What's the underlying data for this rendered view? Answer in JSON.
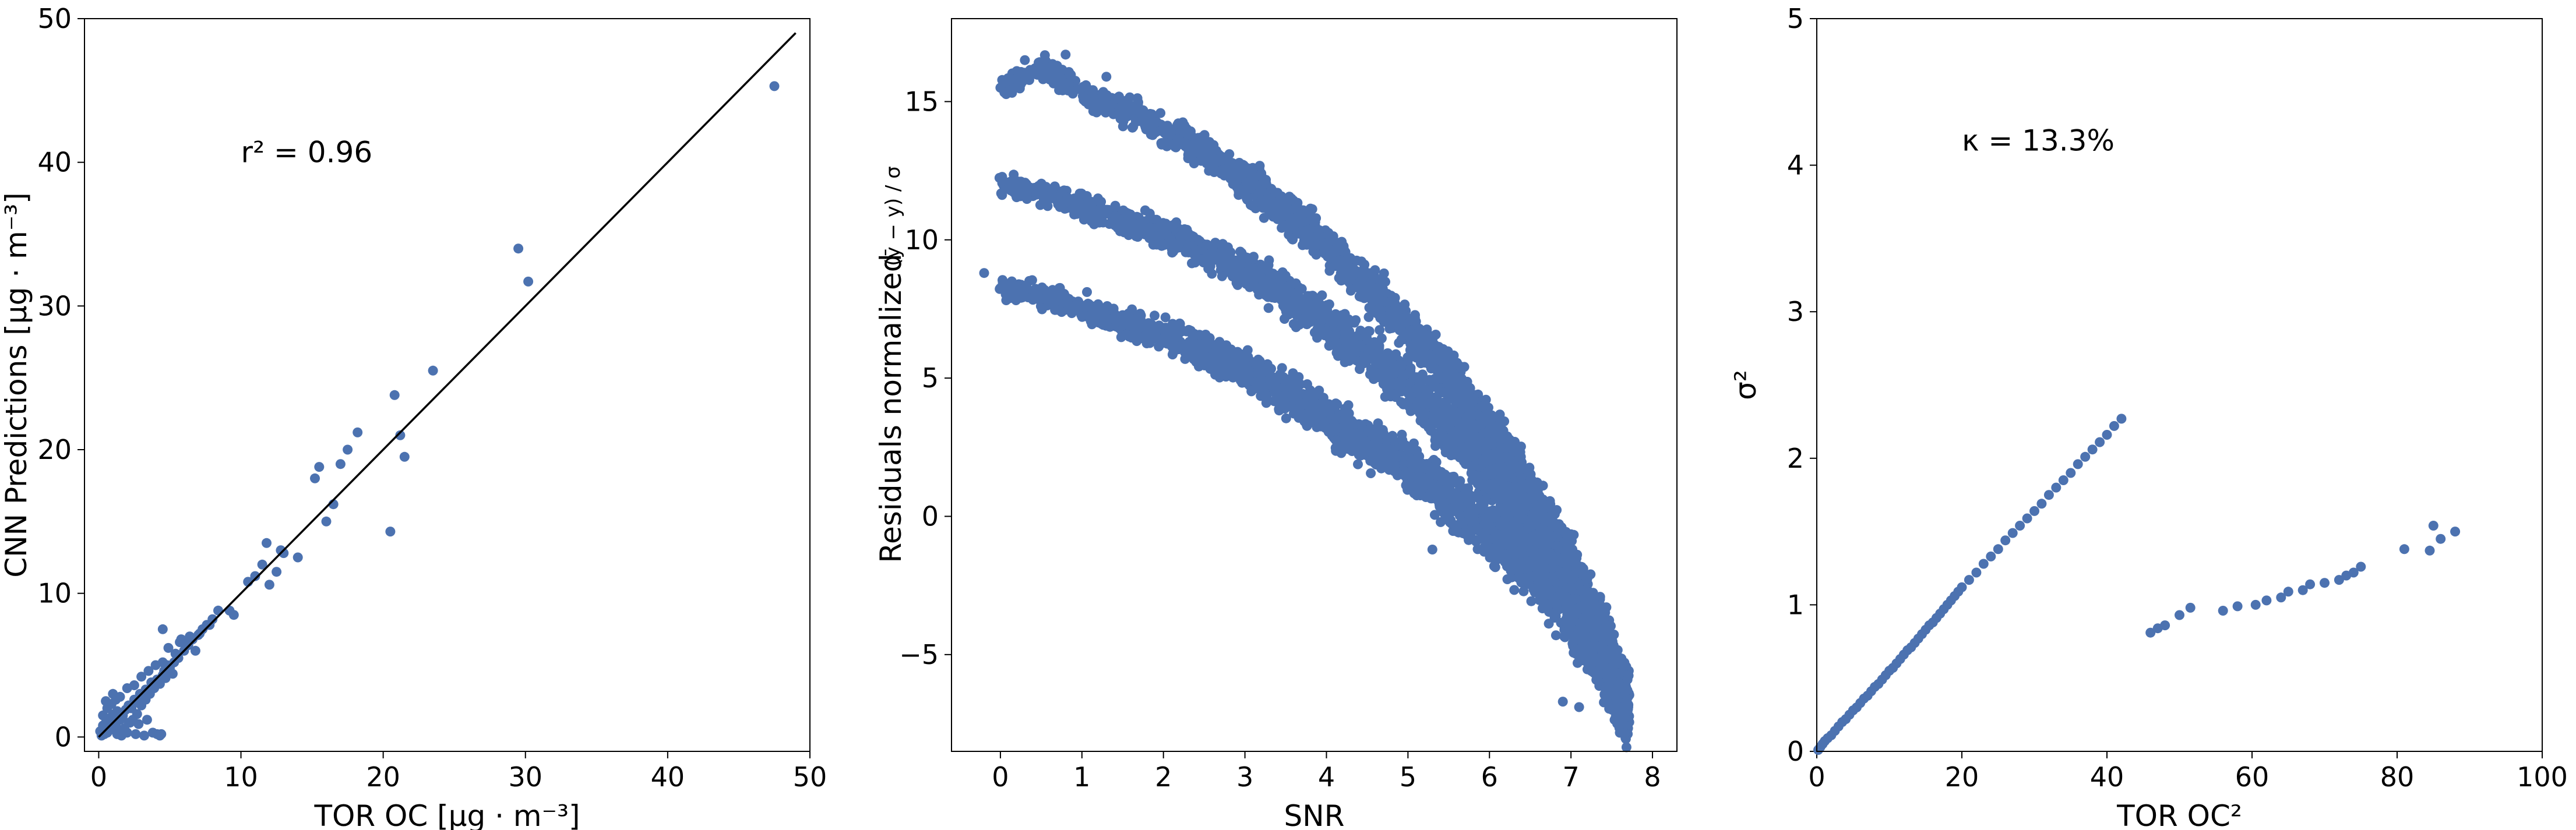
{
  "figure": {
    "point_color": "#4c72b0",
    "line_color": "#000000"
  },
  "chart_data": [
    {
      "type": "scatter",
      "xlabel": "TOR OC [μg · m⁻³]",
      "ylabel": "CNN Predictions [μg · m⁻³]",
      "xlim": [
        -1,
        50
      ],
      "ylim": [
        -1,
        50
      ],
      "xticks": [
        "0",
        "10",
        "20",
        "30",
        "40",
        "50"
      ],
      "yticks": [
        "0",
        "10",
        "20",
        "30",
        "40",
        "50"
      ],
      "annotation": {
        "text": "r² = 0.96",
        "x": 10,
        "y": 40
      },
      "reference_line": {
        "from": [
          0,
          0
        ],
        "to": [
          49,
          49
        ]
      },
      "series": [
        {
          "x": [
            0.1,
            0.2,
            0.3,
            0.4,
            0.5,
            0.6,
            0.7,
            0.8,
            0.9,
            1.0,
            1.1,
            1.2,
            1.3,
            1.5,
            1.7,
            1.9,
            2.1,
            2.3,
            2.5,
            2.7,
            2.9,
            3.1,
            3.3,
            3.5,
            3.7,
            3.9,
            4.1,
            4.3,
            4.5,
            4.7,
            0.3,
            0.6,
            0.9,
            1.2,
            1.5,
            1.8,
            2.1,
            2.4,
            2.7,
            3.0,
            3.3,
            3.6,
            3.9,
            4.2,
            0.5,
            1.0,
            1.5,
            2.0,
            2.5,
            3.0,
            3.5,
            4.0,
            4.5,
            1.3,
            1.6,
            2.0,
            2.6,
            3.2,
            3.8,
            4.4,
            4.1,
            4.3,
            4.6,
            5.0,
            5.3,
            5.6,
            6.0,
            6.3,
            6.6,
            7.0,
            7.3,
            7.6,
            8.0,
            8.4,
            4.9,
            5.4,
            5.8,
            6.2,
            6.8,
            7.1,
            7.8,
            4.5,
            4.8,
            5.2,
            5.7,
            6.4,
            2.2,
            2.8,
            3.4,
            9.2,
            9.5,
            10.5,
            11.0,
            11.5,
            12.0,
            12.5,
            13.0,
            14.0,
            11.8,
            12.8,
            15.2,
            15.5,
            16.0,
            16.5,
            17.0,
            17.5,
            18.2,
            20.5,
            20.8,
            21.2,
            21.5,
            23.5,
            29.5,
            30.2,
            47.5
          ],
          "y": [
            0.4,
            0.1,
            0.8,
            0.2,
            1.0,
            0.3,
            1.2,
            0.5,
            1.4,
            0.6,
            1.6,
            0.8,
            1.8,
            1.2,
            1.5,
            1.9,
            2.2,
            2.0,
            2.6,
            2.4,
            3.0,
            2.8,
            3.3,
            3.1,
            3.8,
            3.5,
            4.0,
            3.7,
            4.3,
            4.1,
            1.5,
            2.0,
            2.3,
            2.6,
            0.4,
            0.6,
            1.0,
            1.2,
            1.6,
            2.2,
            2.6,
            3.0,
            3.4,
            3.8,
            2.5,
            3.0,
            2.8,
            3.4,
            3.6,
            4.2,
            4.6,
            5.0,
            5.2,
            0.2,
            0.1,
            0.3,
            0.2,
            0.1,
            0.3,
            0.2,
            0.2,
            0.1,
            4.6,
            4.8,
            5.2,
            5.5,
            6.0,
            6.4,
            6.8,
            7.1,
            7.5,
            7.8,
            8.2,
            8.8,
            6.2,
            5.8,
            6.8,
            6.5,
            6.0,
            7.2,
            7.8,
            7.5,
            5.0,
            4.4,
            6.6,
            7.0,
            1.0,
            0.9,
            1.2,
            8.8,
            8.5,
            10.8,
            11.2,
            12.0,
            10.6,
            11.5,
            12.8,
            12.5,
            13.5,
            13.0,
            18.0,
            18.8,
            15.0,
            16.2,
            19.0,
            20.0,
            21.2,
            14.3,
            23.8,
            21.0,
            19.5,
            25.5,
            34.0,
            31.7,
            45.3
          ]
        }
      ]
    },
    {
      "type": "scatter",
      "xlabel": "SNR",
      "ylabel": "Residuals normalized",
      "ylabel_fraction": "(ȳ − y) / σ",
      "xlim": [
        -0.6,
        8.3
      ],
      "ylim": [
        -8.5,
        18
      ],
      "xticks": [
        "0",
        "1",
        "2",
        "3",
        "4",
        "5",
        "6",
        "7",
        "8"
      ],
      "yticks": [
        "−5",
        "0",
        "5",
        "10",
        "15"
      ],
      "bands": [
        {
          "x": [
            0.0,
            0.5,
            1.0,
            1.5,
            2.0,
            2.5,
            3.0,
            3.5,
            4.0,
            4.5,
            5.0,
            5.5,
            6.0,
            6.5,
            7.0,
            7.4,
            7.7
          ],
          "y": [
            15.5,
            16.2,
            15.3,
            14.7,
            14.0,
            13.2,
            12.2,
            11.0,
            9.8,
            8.3,
            6.7,
            5.0,
            3.0,
            0.8,
            -1.8,
            -4.5,
            -7.0
          ]
        },
        {
          "x": [
            0.0,
            0.5,
            1.0,
            1.5,
            2.0,
            2.5,
            3.0,
            3.5,
            4.0,
            4.5,
            5.0,
            5.5,
            6.0,
            6.5,
            7.0,
            7.4,
            7.7
          ],
          "y": [
            12.0,
            11.8,
            11.2,
            10.7,
            10.2,
            9.6,
            8.9,
            8.0,
            7.0,
            5.9,
            4.7,
            3.3,
            1.6,
            -0.4,
            -2.6,
            -4.7,
            -6.8
          ]
        },
        {
          "x": [
            0.0,
            0.5,
            1.0,
            1.5,
            2.0,
            2.5,
            3.0,
            3.5,
            4.0,
            4.5,
            5.0,
            5.5,
            6.0,
            6.5,
            7.0,
            7.4,
            7.7
          ],
          "y": [
            8.3,
            8.0,
            7.5,
            7.0,
            6.6,
            6.0,
            5.3,
            4.5,
            3.6,
            2.7,
            1.8,
            0.7,
            -0.5,
            -1.9,
            -3.5,
            -5.3,
            -7.2
          ]
        }
      ],
      "series": [
        {
          "x": [
            -0.2,
            0.3,
            0.5,
            0.8,
            1.3,
            5.3,
            6.9,
            7.1,
            7.6
          ],
          "y": [
            8.8,
            16.5,
            16.2,
            16.7,
            15.9,
            -1.2,
            -6.7,
            -6.9,
            -7.3
          ]
        }
      ]
    },
    {
      "type": "scatter",
      "xlabel": "TOR OC²",
      "ylabel": "σ²",
      "xlim": [
        0,
        100
      ],
      "ylim": [
        0,
        5
      ],
      "xticks": [
        "0",
        "20",
        "40",
        "60",
        "80",
        "100"
      ],
      "yticks": [
        "0",
        "1",
        "2",
        "3",
        "4",
        "5"
      ],
      "annotation": {
        "text": "κ = 13.3%",
        "x": 20,
        "y": 4.1
      },
      "series": [
        {
          "x": [
            0.2,
            0.5,
            0.8,
            1.1,
            1.5,
            2.0,
            2.5,
            3.0,
            3.5,
            4.0,
            4.5,
            5.0,
            5.5,
            6.0,
            6.5,
            7.0,
            7.5,
            8.0,
            8.5,
            9.0,
            9.5,
            10.0,
            10.5,
            11.0,
            11.5,
            12.0,
            12.5,
            13.0,
            13.5,
            14.0,
            14.5,
            15.0,
            15.5,
            16.0,
            16.5,
            17.0,
            17.5,
            18.0,
            18.5,
            19.0,
            19.5,
            20.0,
            21.0,
            22.0,
            23.0,
            24.0,
            25.0,
            26.0,
            27.0,
            28.0,
            29.0,
            30.0,
            31.0,
            32.0,
            33.0,
            34.0,
            35.0,
            36.0,
            37.0,
            38.0,
            39.0,
            40.0,
            41.0,
            42.0,
            46.0,
            47.0,
            48.0,
            50.0,
            51.5,
            56.0,
            58.0,
            60.5,
            62.0,
            64.0,
            65.0,
            67.0,
            68.0,
            70.0,
            72.0,
            73.0,
            74.0,
            75.0,
            81.0,
            84.5,
            85.0,
            86.0,
            88.0
          ],
          "y": [
            0.01,
            0.03,
            0.05,
            0.07,
            0.09,
            0.11,
            0.14,
            0.17,
            0.2,
            0.22,
            0.25,
            0.28,
            0.3,
            0.33,
            0.36,
            0.38,
            0.41,
            0.44,
            0.46,
            0.49,
            0.52,
            0.55,
            0.57,
            0.6,
            0.63,
            0.66,
            0.69,
            0.71,
            0.74,
            0.77,
            0.8,
            0.83,
            0.86,
            0.88,
            0.91,
            0.94,
            0.97,
            1.0,
            1.03,
            1.06,
            1.09,
            1.12,
            1.17,
            1.22,
            1.28,
            1.33,
            1.38,
            1.44,
            1.49,
            1.54,
            1.59,
            1.64,
            1.69,
            1.75,
            1.8,
            1.85,
            1.9,
            1.96,
            2.01,
            2.06,
            2.11,
            2.16,
            2.22,
            2.27,
            0.81,
            0.84,
            0.86,
            0.93,
            0.98,
            0.96,
            0.99,
            1.0,
            1.03,
            1.05,
            1.09,
            1.1,
            1.14,
            1.15,
            1.17,
            1.2,
            1.22,
            1.26,
            1.38,
            1.37,
            1.54,
            1.45,
            1.5
          ]
        }
      ]
    }
  ]
}
